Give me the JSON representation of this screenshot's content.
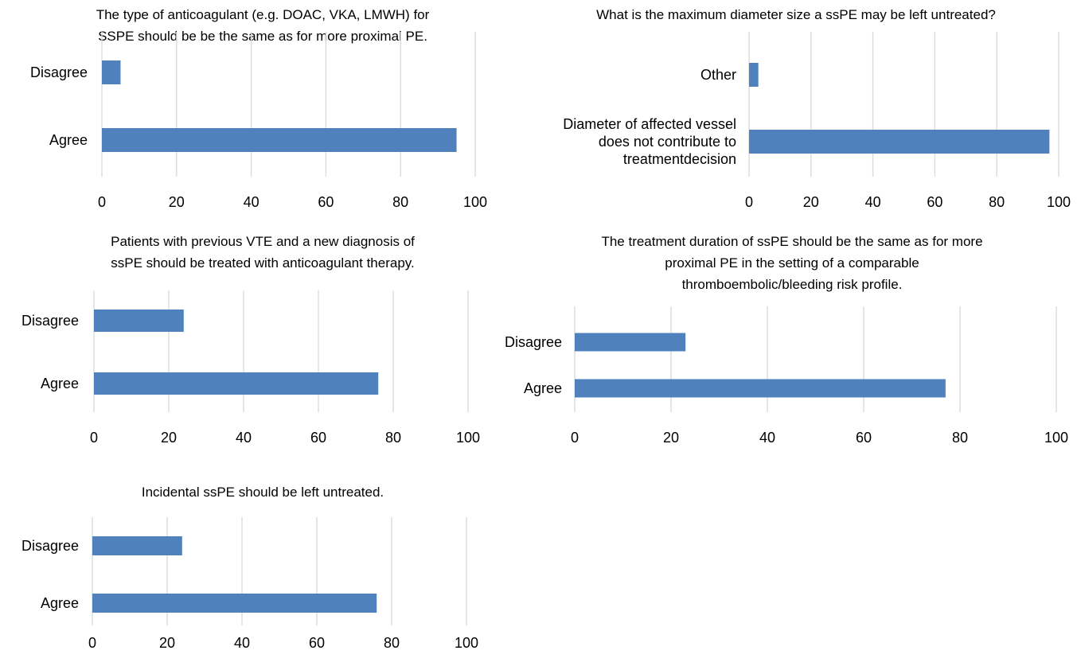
{
  "colors": {
    "bar": "#4f81bd",
    "grid": "#d9d9d9",
    "text": "#000000"
  },
  "chart_data": [
    {
      "type": "bar",
      "orientation": "horizontal",
      "title_lines": [
        "The type of anticoagulant (e.g. DOAC, VKA, LMWH) for",
        "SSPE should be be the same as for more proximal PE."
      ],
      "categories": [
        "Agree",
        "Disagree"
      ],
      "values": [
        95,
        5
      ],
      "xlim": [
        0,
        100
      ],
      "x_ticks": [
        "0",
        "20",
        "40",
        "60",
        "80",
        "100"
      ],
      "grid": true,
      "legend": "none"
    },
    {
      "type": "bar",
      "orientation": "horizontal",
      "title_lines": [
        "What is the maximum diameter size a ssPE may be left untreated?"
      ],
      "categories": [
        [
          "Diameter of affected vessel",
          "does not contribute to",
          "treatmentdecision"
        ],
        [
          "Other"
        ]
      ],
      "values": [
        97,
        3
      ],
      "xlim": [
        0,
        100
      ],
      "x_ticks": [
        "0",
        "20",
        "40",
        "60",
        "80",
        "100"
      ],
      "grid": true,
      "legend": "none"
    },
    {
      "type": "bar",
      "orientation": "horizontal",
      "title_lines": [
        "Patients with previous VTE and a new diagnosis of",
        "ssPE should be treated with anticoagulant therapy."
      ],
      "categories": [
        "Agree",
        "Disagree"
      ],
      "values": [
        76,
        24
      ],
      "xlim": [
        0,
        100
      ],
      "x_ticks": [
        "0",
        "20",
        "40",
        "60",
        "80",
        "100"
      ],
      "grid": true,
      "legend": "none"
    },
    {
      "type": "bar",
      "orientation": "horizontal",
      "title_lines": [
        "The treatment duration of ssPE should be the same as for more",
        "proximal PE in the setting of a comparable",
        "thromboembolic/bleeding risk profile."
      ],
      "categories": [
        "Agree",
        "Disagree"
      ],
      "values": [
        77,
        23
      ],
      "xlim": [
        0,
        100
      ],
      "x_ticks": [
        "0",
        "20",
        "40",
        "60",
        "80",
        "100"
      ],
      "grid": true,
      "legend": "none"
    },
    {
      "type": "bar",
      "orientation": "horizontal",
      "title_lines": [
        "Incidental ssPE should be left untreated."
      ],
      "categories": [
        "Agree",
        "Disagree"
      ],
      "values": [
        76,
        24
      ],
      "xlim": [
        0,
        100
      ],
      "x_ticks": [
        "0",
        "20",
        "40",
        "60",
        "80",
        "100"
      ],
      "grid": true,
      "legend": "none"
    }
  ]
}
